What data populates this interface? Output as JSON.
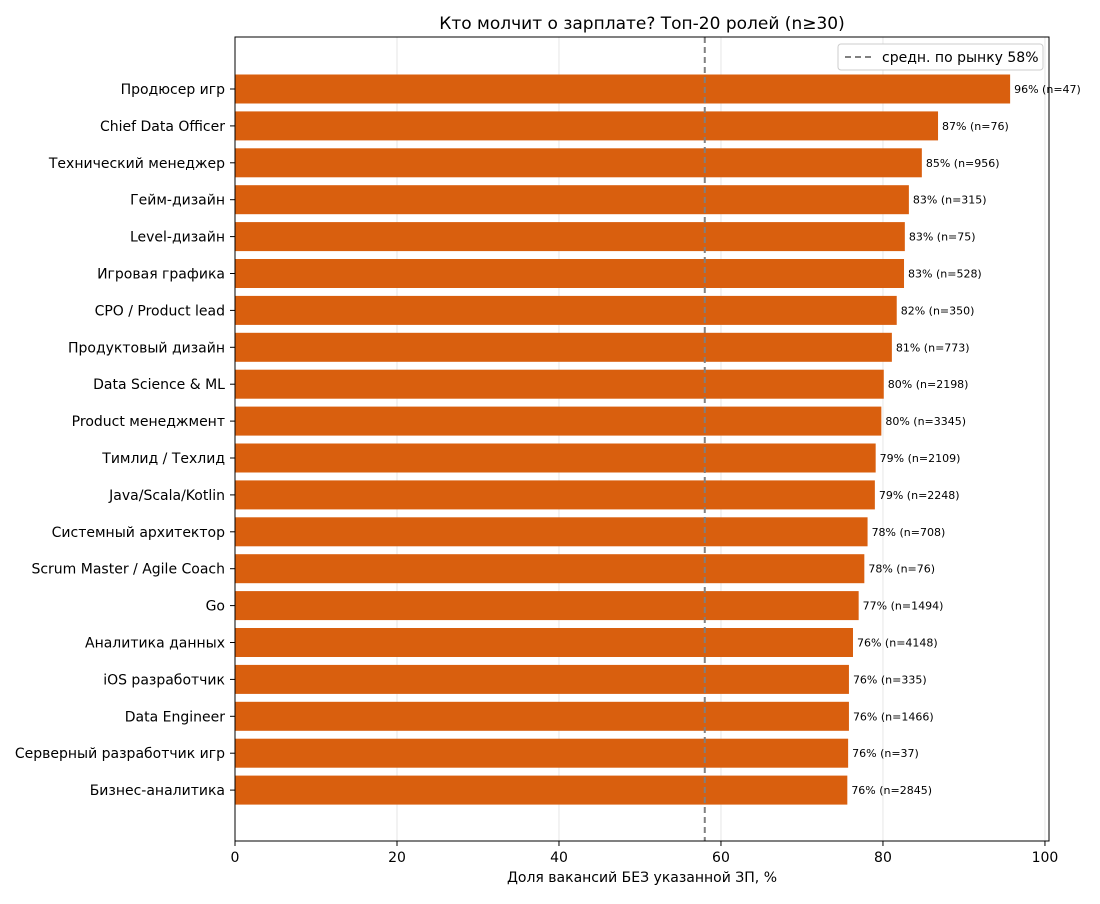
{
  "chart_data": {
    "type": "bar",
    "orientation": "horizontal",
    "title": "Кто молчит о зарплате? Топ-20 ролей (n≥30)",
    "xlabel": "Доля вакансий БЕЗ указанной ЗП, %",
    "ylabel": "",
    "xlim": [
      0,
      100.5
    ],
    "xticks": [
      0,
      20,
      40,
      60,
      80,
      100
    ],
    "grid": "vertical",
    "legend": {
      "position": "top-right",
      "label": "средн. по рынку 58%"
    },
    "reference_line": {
      "value": 58,
      "style": "dashed",
      "color": "#808080"
    },
    "bar_color": "#d95f0e",
    "categories": [
      "Продюсер игр",
      "Chief Data Officer",
      "Технический менеджер",
      "Гейм-дизайн",
      "Level-дизайн",
      "Игровая графика",
      "CPO / Product lead",
      "Продуктовый дизайн",
      "Data Science & ML",
      "Product менеджмент",
      "Тимлид / Техлид",
      "Java/Scala/Kotlin",
      "Системный архитектор",
      "Scrum Master / Agile Coach",
      "Go",
      "Аналитика данных",
      "iOS разработчик",
      "Data Engineer",
      "Серверный разработчик игр",
      "Бизнес-аналитика"
    ],
    "values": [
      95.7,
      86.8,
      84.8,
      83.2,
      82.7,
      82.6,
      81.7,
      81.1,
      80.1,
      79.8,
      79.1,
      79.0,
      78.1,
      77.7,
      77.0,
      76.3,
      75.8,
      75.8,
      75.7,
      75.6
    ],
    "data_labels": [
      "96%  (n=47)",
      "87%  (n=76)",
      "85%  (n=956)",
      "83%  (n=315)",
      "83%  (n=75)",
      "83%  (n=528)",
      "82%  (n=350)",
      "81%  (n=773)",
      "80%  (n=2198)",
      "80%  (n=3345)",
      "79%  (n=2109)",
      "79%  (n=2248)",
      "78%  (n=708)",
      "78%  (n=76)",
      "77%  (n=1494)",
      "76%  (n=4148)",
      "76%  (n=335)",
      "76%  (n=1466)",
      "76%  (n=37)",
      "76%  (n=2845)"
    ]
  }
}
